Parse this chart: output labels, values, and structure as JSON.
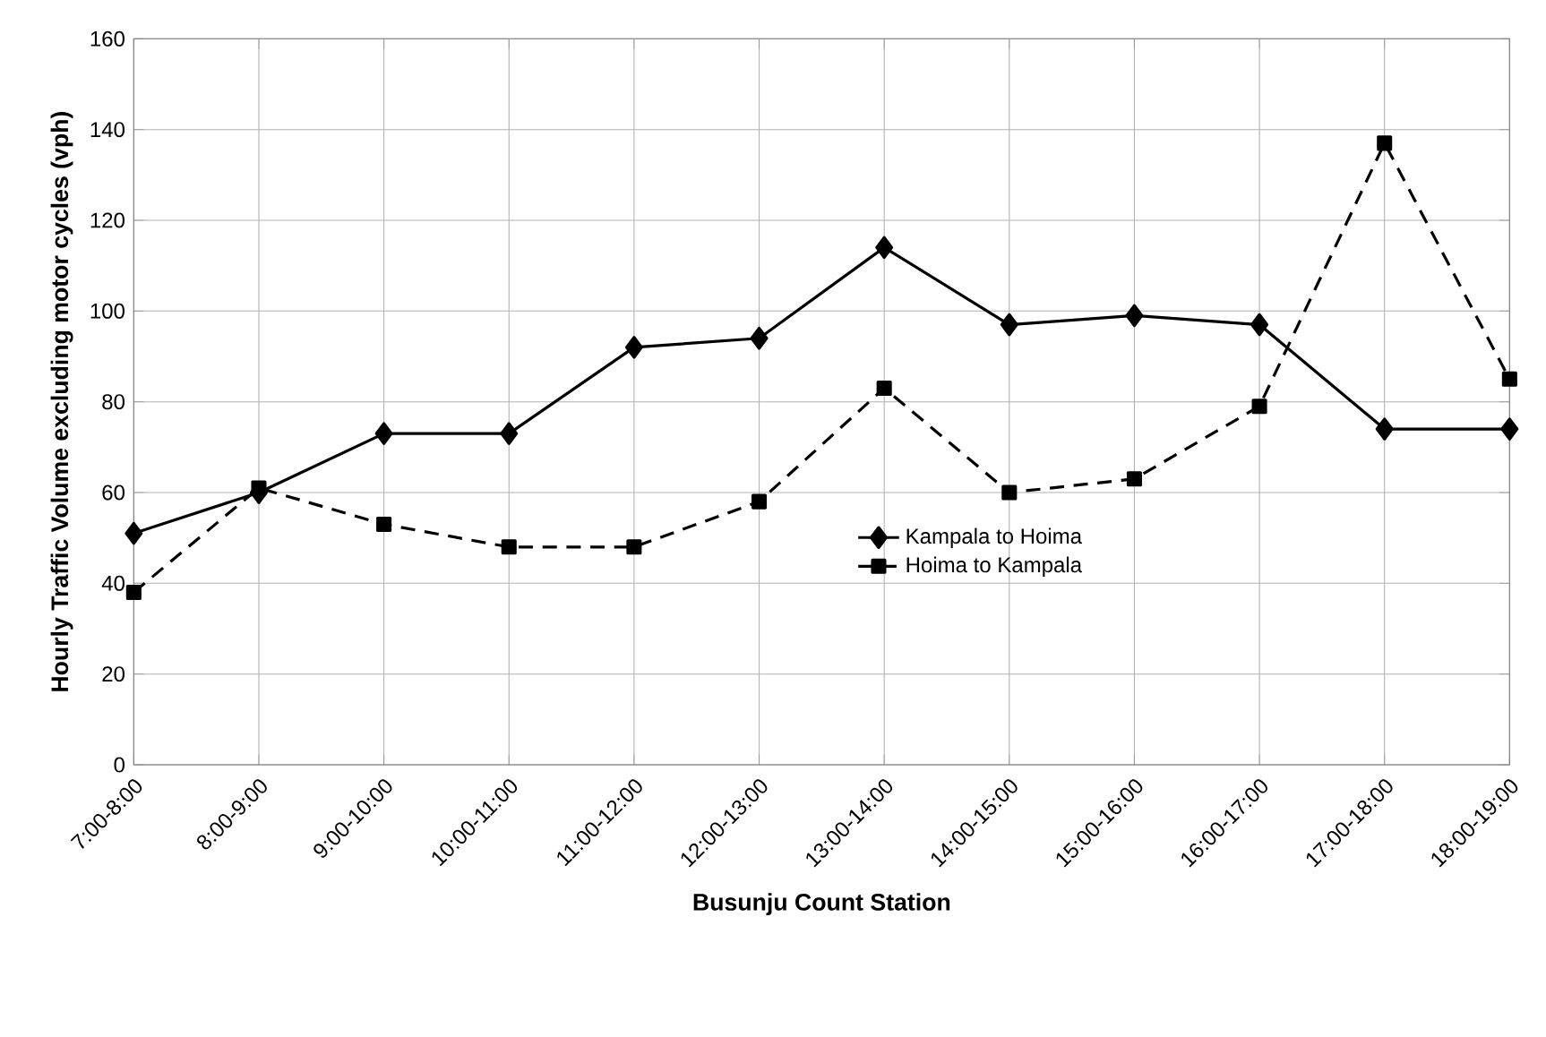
{
  "chart_data": {
    "type": "line",
    "xlabel": "Busunju Count Station",
    "ylabel": "Hourly Traffic Volume excluding motor cycles (vph)",
    "categories": [
      "7:00-8:00",
      "8:00-9:00",
      "9:00-10:00",
      "10:00-11:00",
      "11:00-12:00",
      "12:00-13:00",
      "13:00-14:00",
      "14:00-15:00",
      "15:00-16:00",
      "16:00-17:00",
      "17:00-18:00",
      "18:00-19:00"
    ],
    "series": [
      {
        "name": "Kampala to Hoima",
        "color": "#000000",
        "marker": "diamond",
        "line_style": "solid",
        "values": [
          51,
          60,
          73,
          73,
          92,
          94,
          114,
          97,
          99,
          97,
          74,
          74
        ]
      },
      {
        "name": "Hoima to Kampala",
        "color": "#000000",
        "marker": "square",
        "line_style": "dashed",
        "values": [
          38,
          61,
          53,
          48,
          48,
          58,
          83,
          60,
          63,
          79,
          137,
          85
        ]
      }
    ],
    "ylim": [
      0,
      160
    ],
    "yticks": [
      0,
      20,
      40,
      60,
      80,
      100,
      120,
      140,
      160
    ],
    "grid": true,
    "legend": "center"
  }
}
